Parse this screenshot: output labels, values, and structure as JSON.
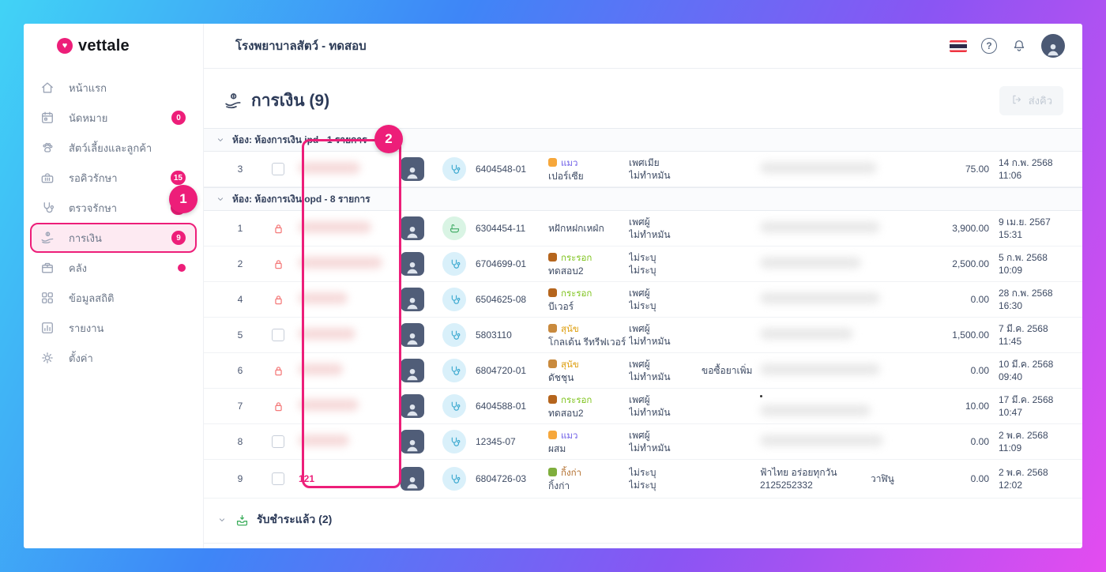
{
  "accent_color": "#ed1e79",
  "sidebar": {
    "logo_text": "vettale",
    "logo_icon": "heart-logo-icon",
    "items": [
      {
        "label": "หน้าแรก",
        "icon": "home-icon"
      },
      {
        "label": "นัดหมาย",
        "icon": "calendar-icon",
        "badge": "0"
      },
      {
        "label": "สัตว์เลี้ยงและลูกค้า",
        "icon": "paw-icon"
      },
      {
        "label": "รอคิวรักษา",
        "icon": "carrier-icon",
        "badge": "15"
      },
      {
        "label": "ตรวจรักษา",
        "icon": "stethoscope-icon",
        "badge": "12"
      },
      {
        "label": "การเงิน",
        "icon": "hand-coin-icon",
        "badge": "9",
        "active": true
      },
      {
        "label": "คลัง",
        "icon": "inventory-icon",
        "badge": "dot"
      },
      {
        "label": "ข้อมูลสถิติ",
        "icon": "grid-icon"
      },
      {
        "label": "รายงาน",
        "icon": "report-icon"
      },
      {
        "label": "ตั้งค่า",
        "icon": "gear-icon"
      }
    ]
  },
  "topbar": {
    "collapse_icon": "collapse-sidebar-icon",
    "clinic_icon": "dog-icon",
    "clinic_title": "โรงพยาบาลสัตว์ - ทดสอบ",
    "right_icons": [
      "thai-flag-icon",
      "help-icon",
      "bell-icon",
      "user-avatar"
    ]
  },
  "page": {
    "title_icon": "hand-coin-icon",
    "title": "การเงิน",
    "count": "(9)",
    "send_queue_label": "ส่งคิว"
  },
  "table": {
    "sections": [
      {
        "title": "ห้อง: ห้องการเงิน ipd - 1 รายการ",
        "rows": [
          {
            "num": "3",
            "locked": false,
            "name_text": null,
            "name_redacted": true,
            "name_blur": 78,
            "room": "stethoscope",
            "id": "6404548-01",
            "species": "แมว",
            "species_color": "#6c5ce7",
            "species_icon": "cat-icon",
            "chip": "#f6a73b",
            "breed": "เปอร์เซีย",
            "sex": "เพศเมีย",
            "neuter": "ไม่ทำหมัน",
            "note": "",
            "owner_redacted": true,
            "owner_blur": 148,
            "owner_lines": null,
            "extra": "",
            "amount": "75.00",
            "date": "14 ก.พ. 2568",
            "time": "11:06"
          }
        ]
      },
      {
        "title": "ห้อง: ห้องการเงิน opd - 8 รายการ",
        "rows": [
          {
            "num": "1",
            "locked": true,
            "name_text": null,
            "name_redacted": true,
            "name_blur": 92,
            "room": "bath",
            "id": "6304454-11",
            "species": "",
            "species_color": "",
            "species_icon": "",
            "chip": "",
            "breed": "หฝักหฝกเหฝ่ก",
            "sex": "เพศผู้",
            "neuter": "ไม่ทำหมัน",
            "note": "",
            "owner_redacted": true,
            "owner_blur": 152,
            "owner_lines": null,
            "extra": "",
            "amount": "3,900.00",
            "date": "9 เม.ย. 2567",
            "time": "15:31"
          },
          {
            "num": "2",
            "locked": true,
            "name_text": null,
            "name_redacted": true,
            "name_blur": 106,
            "room": "stethoscope",
            "id": "6704699-01",
            "species": "กระรอก",
            "species_color": "#7ec31c",
            "species_icon": "squirrel-icon",
            "chip": "#b5651d",
            "breed": "ทดสอบ2",
            "sex": "ไม่ระบุ",
            "neuter": "ไม่ระบุ",
            "note": "",
            "owner_redacted": true,
            "owner_blur": 128,
            "owner_lines": null,
            "extra": "",
            "amount": "2,500.00",
            "date": "5 ก.พ. 2568",
            "time": "10:09"
          },
          {
            "num": "4",
            "locked": true,
            "name_text": null,
            "name_redacted": true,
            "name_blur": 62,
            "room": "stethoscope",
            "id": "6504625-08",
            "species": "กระรอก",
            "species_color": "#7ec31c",
            "species_icon": "squirrel-icon",
            "chip": "#b5651d",
            "breed": "บีเวอร์",
            "sex": "เพศผู้",
            "neuter": "ไม่ระบุ",
            "note": "",
            "owner_redacted": true,
            "owner_blur": 152,
            "owner_lines": null,
            "extra": "",
            "amount": "0.00",
            "date": "28 ก.พ. 2568",
            "time": "16:30"
          },
          {
            "num": "5",
            "locked": false,
            "name_text": null,
            "name_redacted": true,
            "name_blur": 72,
            "room": "stethoscope",
            "id": "5803110",
            "species": "สุนัข",
            "species_color": "#de9f10",
            "species_icon": "dog-icon",
            "chip": "#c98a3d",
            "breed": "โกลเด้น รีทรีฟเวอร์",
            "sex": "เพศผู้",
            "neuter": "ไม่ทำหมัน",
            "note": "",
            "owner_redacted": true,
            "owner_blur": 118,
            "owner_lines": null,
            "extra": "",
            "amount": "1,500.00",
            "date": "7 มี.ค. 2568",
            "time": "11:45"
          },
          {
            "num": "6",
            "locked": true,
            "name_text": null,
            "name_redacted": true,
            "name_blur": 56,
            "room": "stethoscope",
            "id": "6804720-01",
            "species": "สุนัข",
            "species_color": "#de9f10",
            "species_icon": "dog-icon",
            "chip": "#c98a3d",
            "breed": "ดัชชุน",
            "sex": "เพศผู้",
            "neuter": "ไม่ทำหมัน",
            "note": "ขอซื้อยาเพิ่ม",
            "owner_redacted": true,
            "owner_blur": 152,
            "owner_lines": null,
            "extra": "",
            "amount": "0.00",
            "date": "10 มี.ค. 2568",
            "time": "09:40"
          },
          {
            "num": "7",
            "locked": true,
            "name_text": null,
            "name_redacted": true,
            "name_blur": 76,
            "room": "stethoscope",
            "id": "6404588-01",
            "species": "กระรอก",
            "species_color": "#7ec31c",
            "species_icon": "squirrel-icon",
            "chip": "#b5651d",
            "breed": "ทดสอบ2",
            "sex": "เพศผู้",
            "neuter": "ไม่ทำหมัน",
            "note": "",
            "owner_redacted": true,
            "owner_blur": 140,
            "owner_lines": null,
            "owner_dot": true,
            "extra": "",
            "amount": "10.00",
            "date": "17 มี.ค. 2568",
            "time": "10:47"
          },
          {
            "num": "8",
            "locked": false,
            "name_text": null,
            "name_redacted": true,
            "name_blur": 64,
            "room": "stethoscope",
            "id": "12345-07",
            "species": "แมว",
            "species_color": "#6c5ce7",
            "species_icon": "cat-icon",
            "chip": "#f6a73b",
            "breed": "ผสม",
            "sex": "เพศผู้",
            "neuter": "ไม่ทำหมัน",
            "note": "",
            "owner_redacted": true,
            "owner_blur": 156,
            "owner_lines": null,
            "extra": "",
            "amount": "0.00",
            "date": "2 พ.ค. 2568",
            "time": "11:09"
          },
          {
            "num": "9",
            "locked": false,
            "name_text": "121",
            "name_redacted": false,
            "name_blur": 0,
            "room": "stethoscope",
            "id": "6804726-03",
            "species": "กิ้งก่า",
            "species_color": "#b06a26",
            "species_icon": "lizard-icon",
            "chip": "#7fae3d",
            "breed": "กิ้งก่า",
            "sex": "ไม่ระบุ",
            "neuter": "ไม่ระบุ",
            "note": "",
            "owner_redacted": false,
            "owner_blur": 0,
            "owner_lines": [
              "ฟ้าไทย อร่อยทุกวัน",
              "2125252332"
            ],
            "extra": "วาฬินู",
            "amount": "0.00",
            "date": "2 พ.ค. 2568",
            "time": "12:02",
            "tall": true
          }
        ]
      }
    ]
  },
  "footer_section": {
    "icon": "payment-received-icon",
    "label": "รับชำระแล้ว (2)"
  },
  "annotations": {
    "step1": "1",
    "step2": "2"
  }
}
